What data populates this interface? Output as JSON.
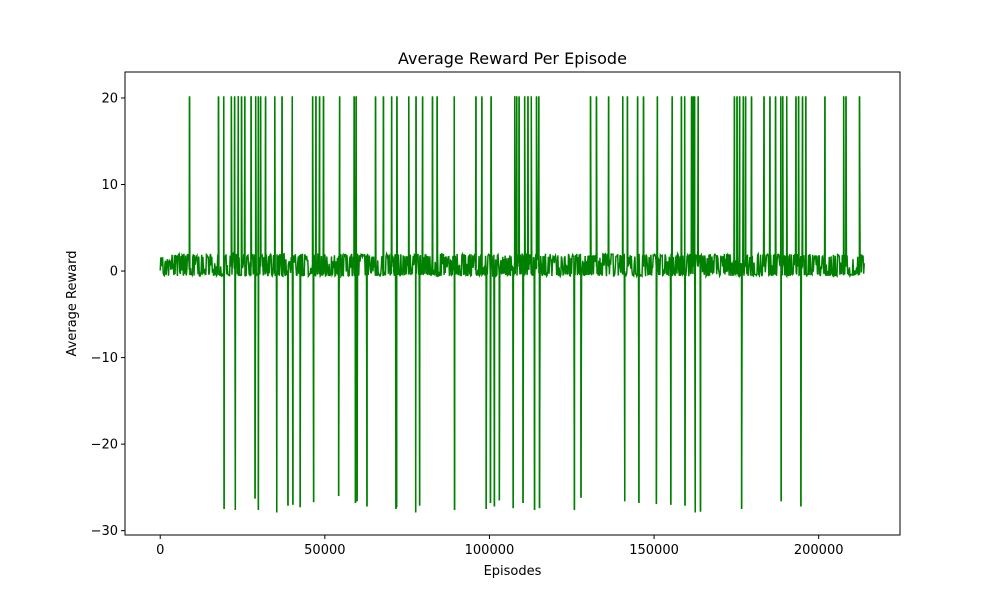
{
  "chart_data": {
    "type": "line",
    "title": "Average Reward Per Episode",
    "xlabel": "Episodes",
    "ylabel": "Average Reward",
    "xlim": [
      -10700,
      224700
    ],
    "ylim": [
      -30.5,
      23.0
    ],
    "xticks": [
      0,
      50000,
      100000,
      150000,
      200000
    ],
    "xtick_labels": [
      "0",
      "50000",
      "100000",
      "150000",
      "200000"
    ],
    "yticks": [
      -30,
      -20,
      -10,
      0,
      10,
      20
    ],
    "ytick_labels": [
      "−30",
      "−20",
      "−10",
      "0",
      "10",
      "20"
    ],
    "grid": false,
    "line_color": "#008000",
    "series": [
      {
        "baseline_band": [
          -0.6,
          2.0
        ],
        "positive_spikes_x": [
          8900,
          17700,
          19300,
          21600,
          22600,
          23700,
          24700,
          25700,
          27600,
          29000,
          29800,
          30500,
          32000,
          34800,
          37000,
          40100,
          46300,
          47300,
          48400,
          49600,
          54500,
          58900,
          59500,
          65400,
          67800,
          70300,
          71900,
          75500,
          77700,
          79700,
          82700,
          84100,
          89300,
          95900,
          97700,
          100500,
          107700,
          108300,
          109000,
          110700,
          111700,
          112700,
          114300,
          115000,
          130700,
          132500,
          136200,
          140500,
          141900,
          145000,
          146800,
          151000,
          155500,
          158300,
          159300,
          161400,
          161900,
          162300,
          163400,
          174400,
          175200,
          176000,
          177100,
          177800,
          179600,
          183400,
          185200,
          186900,
          188500,
          189100,
          190300,
          193100,
          193900,
          195100,
          196100,
          201900,
          207600,
          208300,
          212400
        ],
        "positive_spike_peak": 20.2,
        "negative_spikes_x": [
          19400,
          22800,
          28800,
          29800,
          35400,
          38800,
          40300,
          42500,
          46600,
          54200,
          59300,
          59800,
          62800,
          71600,
          71800,
          77600,
          78800,
          89400,
          99000,
          100300,
          101500,
          103000,
          107200,
          110200,
          113700,
          115200,
          125800,
          127800,
          141100,
          145400,
          150700,
          155100,
          159400,
          162500,
          164100,
          176600,
          188600,
          194600
        ],
        "negative_spike_values": [
          -27.5,
          -27.6,
          -26.3,
          -27.6,
          -27.9,
          -27.1,
          -27.0,
          -27.3,
          -26.7,
          -26.0,
          -26.8,
          -26.6,
          -27.2,
          -27.5,
          -27.3,
          -27.9,
          -27.1,
          -27.6,
          -27.5,
          -26.8,
          -27.2,
          -26.5,
          -27.4,
          -26.8,
          -27.6,
          -27.4,
          -27.6,
          -26.2,
          -26.6,
          -26.8,
          -26.9,
          -27.0,
          -27.1,
          -27.9,
          -27.8,
          -27.5,
          -26.6,
          -27.2
        ],
        "x_range": [
          0,
          214000
        ]
      }
    ]
  }
}
